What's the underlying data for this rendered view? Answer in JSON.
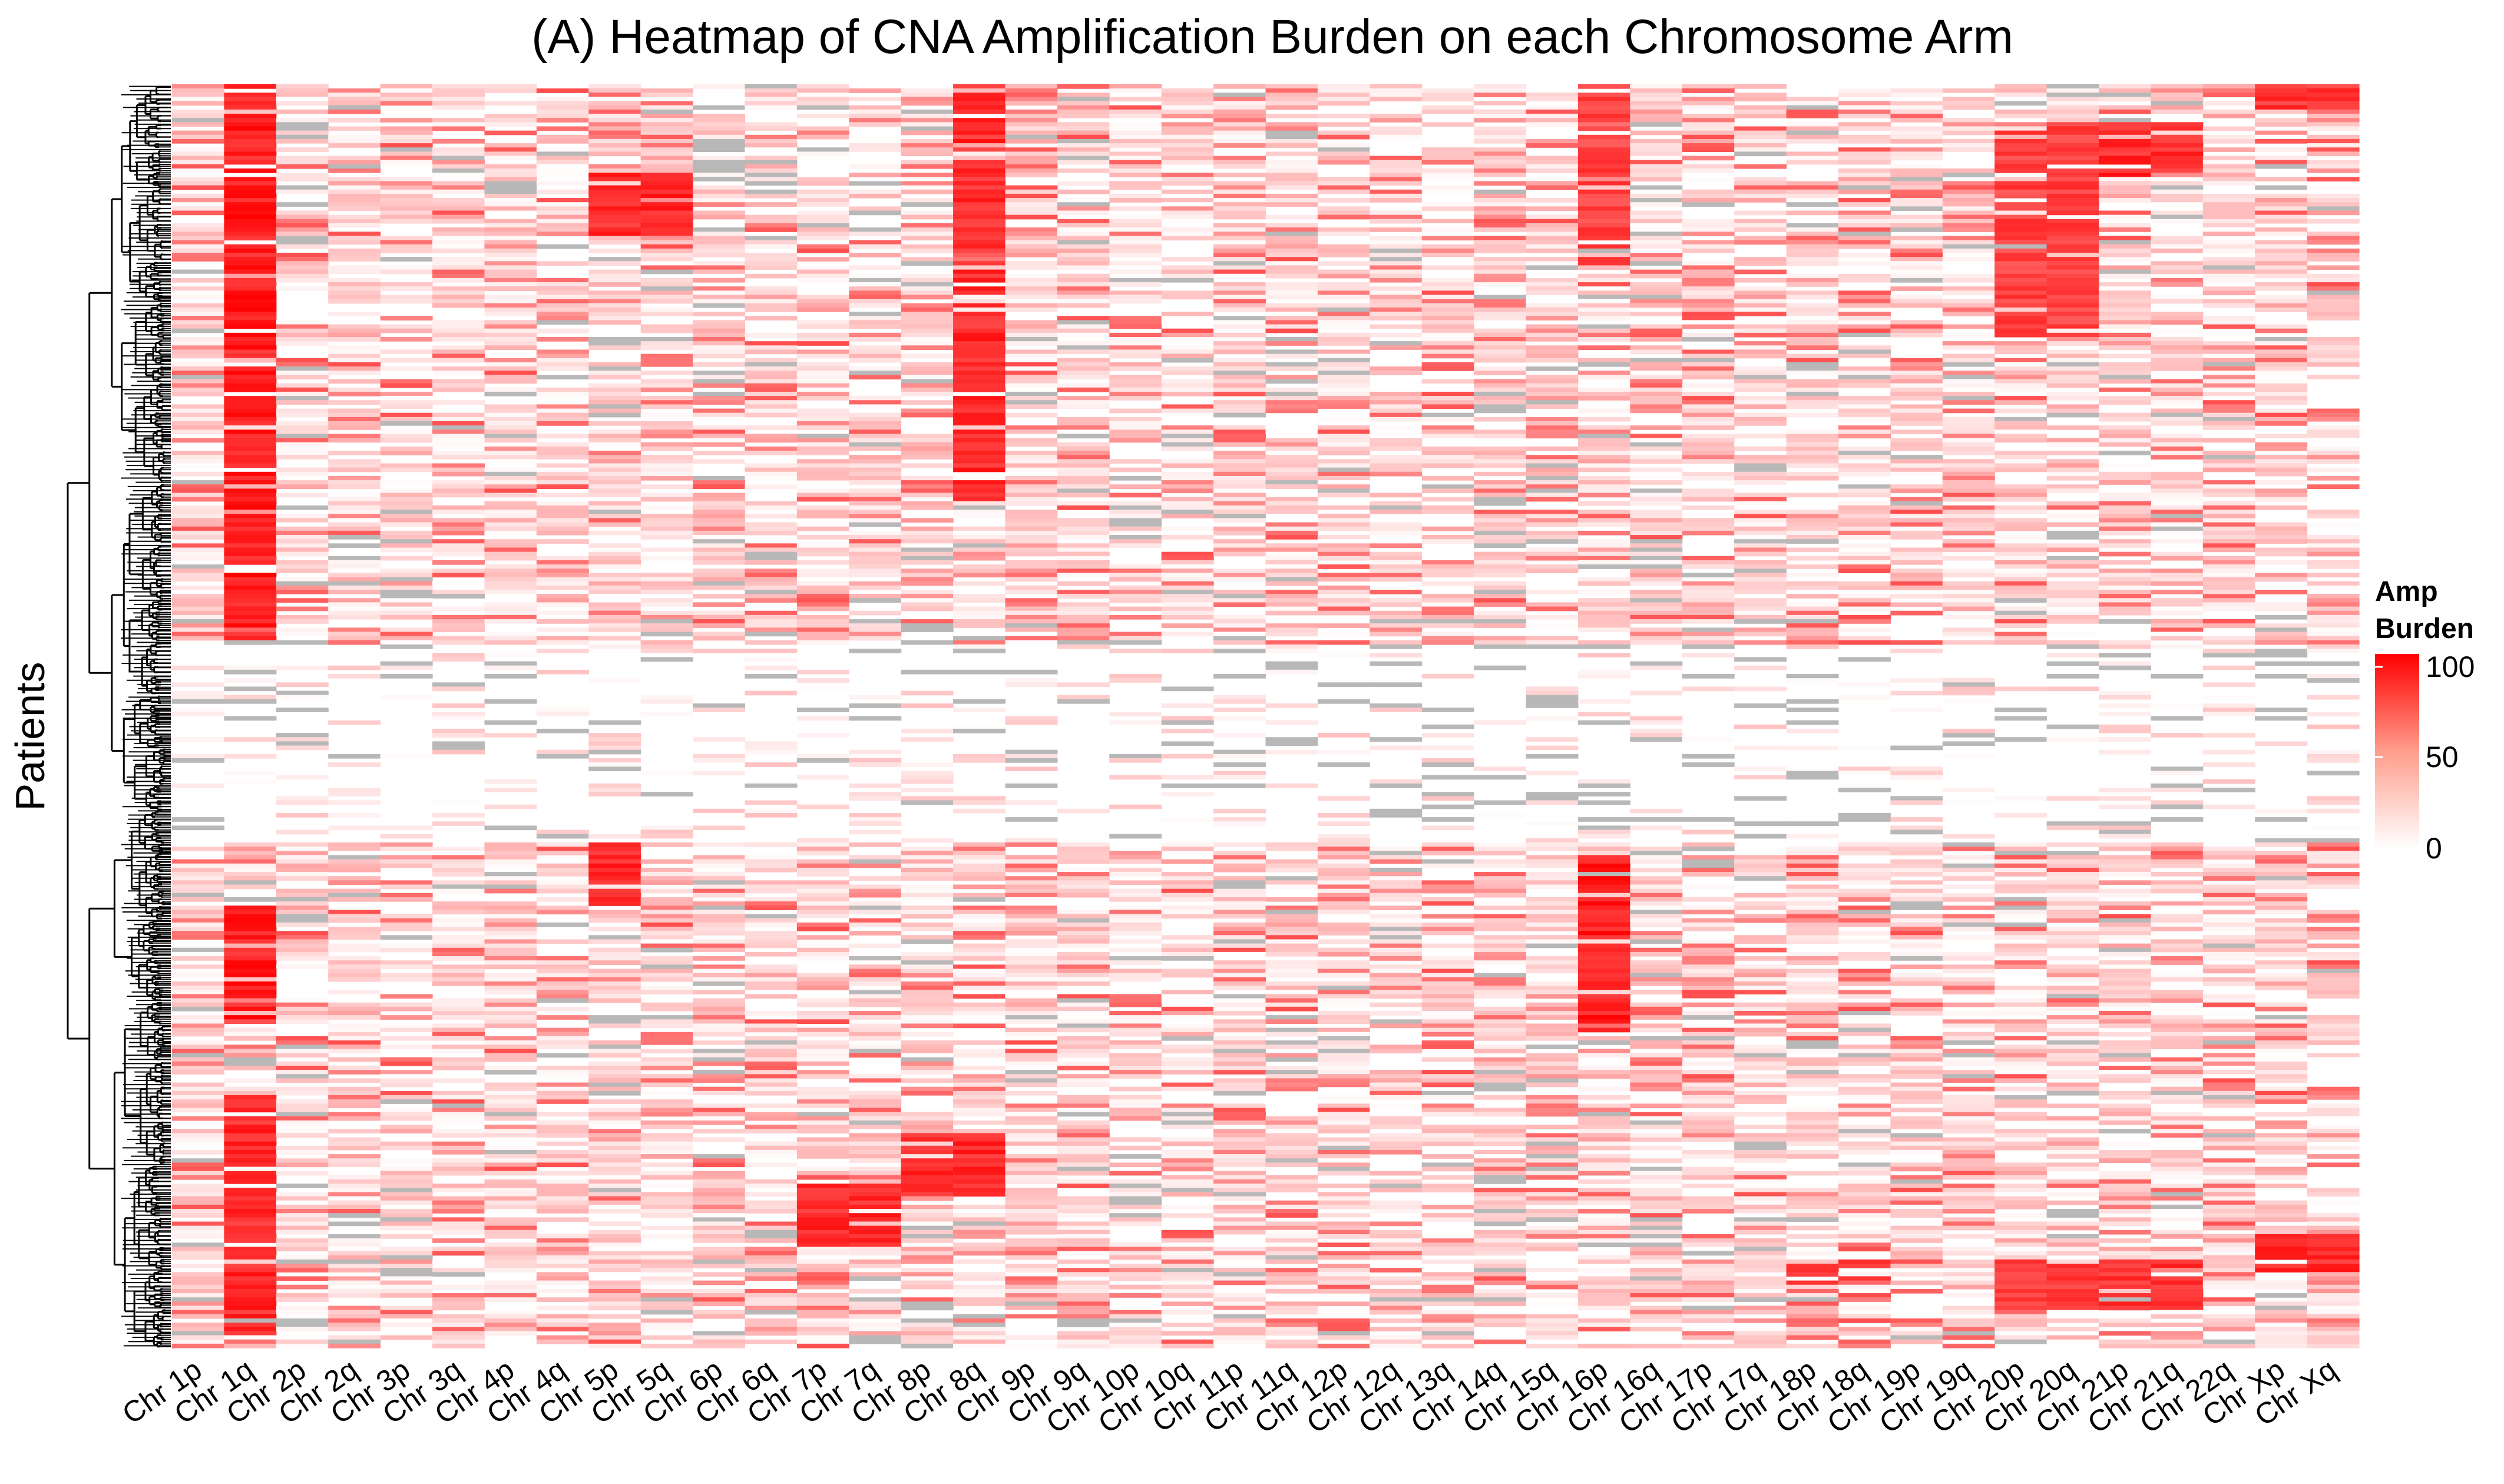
{
  "chart_data": {
    "type": "heatmap",
    "title": "(A) Heatmap of CNA Amplification Burden on each Chromosome Arm",
    "ylabel": "Patients",
    "xlabel": "",
    "columns": [
      "Chr 1p",
      "Chr 1q",
      "Chr 2p",
      "Chr 2q",
      "Chr 3p",
      "Chr 3q",
      "Chr 4p",
      "Chr 4q",
      "Chr 5p",
      "Chr 5q",
      "Chr 6p",
      "Chr 6q",
      "Chr 7p",
      "Chr 7q",
      "Chr 8p",
      "Chr 8q",
      "Chr 9p",
      "Chr 9q",
      "Chr 10p",
      "Chr 10q",
      "Chr 11p",
      "Chr 11q",
      "Chr 12p",
      "Chr 12q",
      "Chr 13q",
      "Chr 14q",
      "Chr 15q",
      "Chr 16p",
      "Chr 16q",
      "Chr 17p",
      "Chr 17q",
      "Chr 18p",
      "Chr 18q",
      "Chr 19p",
      "Chr 19q",
      "Chr 20p",
      "Chr 20q",
      "Chr 21p",
      "Chr 21q",
      "Chr 22q",
      "Chr Xp",
      "Chr Xq"
    ],
    "rows_description": "Patients (hierarchically clustered, dendrogram on left)",
    "color_scale": {
      "low": "#ffffff",
      "mid": "#ffb3a6",
      "high": "#ff0000",
      "missing": "#bebebe",
      "range": [
        0,
        100
      ]
    },
    "legend": {
      "title_line1": "Amp",
      "title_line2": "Burden",
      "ticks": [
        100,
        50,
        0
      ],
      "position": "right"
    },
    "blocks": [
      {
        "row_start": 0.0,
        "row_end": 0.44,
        "columns": [
          "Chr 1q"
        ],
        "value": 95
      },
      {
        "row_start": 0.0,
        "row_end": 0.33,
        "columns": [
          "Chr 8q"
        ],
        "value": 90
      },
      {
        "row_start": 0.0,
        "row_end": 0.14,
        "columns": [
          "Chr 16p"
        ],
        "value": 80
      },
      {
        "row_start": 0.03,
        "row_end": 0.2,
        "columns": [
          "Chr 20p",
          "Chr 20q"
        ],
        "value": 80
      },
      {
        "row_start": 0.03,
        "row_end": 0.07,
        "columns": [
          "Chr 21p",
          "Chr 21q"
        ],
        "value": 90
      },
      {
        "row_start": 0.0,
        "row_end": 0.02,
        "columns": [
          "Chr Xp",
          "Chr Xq"
        ],
        "value": 85
      },
      {
        "row_start": 0.07,
        "row_end": 0.12,
        "columns": [
          "Chr 5p",
          "Chr 5q"
        ],
        "value": 90
      },
      {
        "row_start": 0.61,
        "row_end": 0.75,
        "columns": [
          "Chr 16p"
        ],
        "value": 95
      },
      {
        "row_start": 0.65,
        "row_end": 0.74,
        "columns": [
          "Chr 1q"
        ],
        "value": 95
      },
      {
        "row_start": 0.8,
        "row_end": 0.99,
        "columns": [
          "Chr 1q"
        ],
        "value": 90
      },
      {
        "row_start": 0.83,
        "row_end": 0.88,
        "columns": [
          "Chr 8p",
          "Chr 8q"
        ],
        "value": 90
      },
      {
        "row_start": 0.87,
        "row_end": 0.92,
        "columns": [
          "Chr 7p",
          "Chr 7q"
        ],
        "value": 90
      },
      {
        "row_start": 0.6,
        "row_end": 0.65,
        "columns": [
          "Chr 5p"
        ],
        "value": 90
      },
      {
        "row_start": 0.93,
        "row_end": 0.97,
        "columns": [
          "Chr 20p",
          "Chr 20q",
          "Chr 21p",
          "Chr 21q"
        ],
        "value": 85
      },
      {
        "row_start": 0.91,
        "row_end": 0.94,
        "columns": [
          "Chr Xp",
          "Chr Xq"
        ],
        "value": 90
      },
      {
        "row_start": 0.93,
        "row_end": 0.95,
        "columns": [
          "Chr 18p",
          "Chr 18q"
        ],
        "value": 85
      }
    ]
  }
}
